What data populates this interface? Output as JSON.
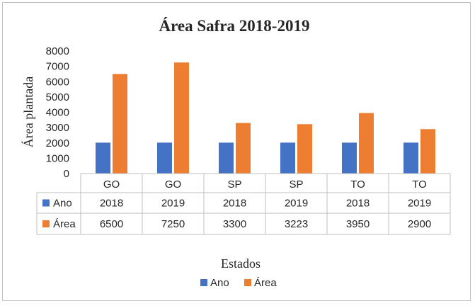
{
  "chart_data": {
    "type": "bar",
    "title": "Área Safra 2018-2019",
    "xlabel": "Estados",
    "ylabel": "Área plantada",
    "ylim": [
      0,
      8000
    ],
    "yticks": [
      0,
      1000,
      2000,
      3000,
      4000,
      5000,
      6000,
      7000,
      8000
    ],
    "categories": [
      "GO",
      "GO",
      "SP",
      "SP",
      "TO",
      "TO"
    ],
    "series": [
      {
        "name": "Ano",
        "color": "#4472c4",
        "values": [
          2018,
          2019,
          2018,
          2019,
          2018,
          2019
        ]
      },
      {
        "name": "Área",
        "color": "#ed7d31",
        "values": [
          6500,
          7250,
          3300,
          3223,
          3950,
          2900
        ]
      }
    ],
    "grid": false,
    "legend": "bottom",
    "data_table": true
  }
}
